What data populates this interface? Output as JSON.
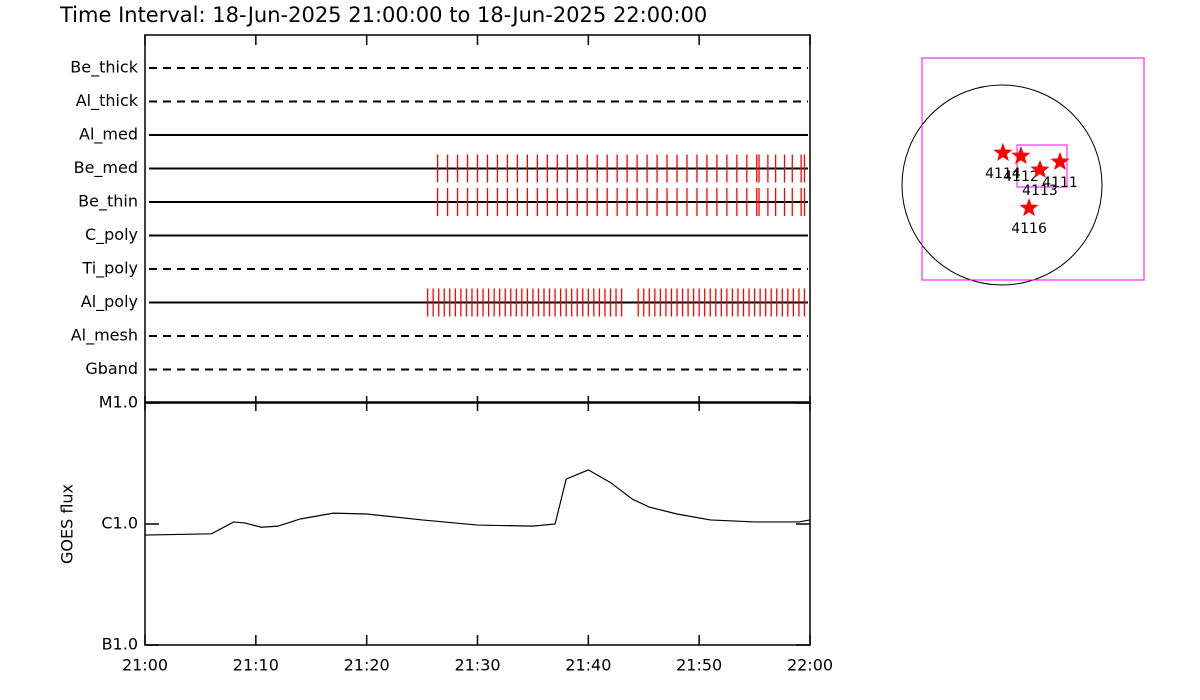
{
  "chart_data": [
    {
      "type": "timeline",
      "title": "Time Interval: 18-Jun-2025 21:00:00 to 18-Jun-2025 22:00:00",
      "xlim": [
        0,
        60
      ],
      "color": "#ff0000",
      "rows": [
        {
          "name": "Be_thick",
          "line_style": "dashed",
          "events": []
        },
        {
          "name": "Al_thick",
          "line_style": "dashed",
          "events": []
        },
        {
          "name": "Al_med",
          "line_style": "solid",
          "events": []
        },
        {
          "name": "Be_med",
          "line_style": "solid",
          "events": [
            26.4,
            27.3,
            28.2,
            29.1,
            30.0,
            30.9,
            31.8,
            32.7,
            33.6,
            34.5,
            35.4,
            36.3,
            37.2,
            38.1,
            39.0,
            39.9,
            40.8,
            41.7,
            42.6,
            43.5,
            44.4,
            45.3,
            46.2,
            47.1,
            48.0,
            48.9,
            49.8,
            50.7,
            51.6,
            52.5,
            53.4,
            54.3,
            55.2,
            55.4,
            56.2,
            56.9,
            57.7,
            58.4,
            59.2,
            59.5
          ]
        },
        {
          "name": "Be_thin",
          "line_style": "solid",
          "events": [
            26.4,
            27.3,
            28.2,
            29.1,
            30.0,
            30.9,
            31.8,
            32.7,
            33.6,
            34.5,
            35.4,
            36.3,
            37.2,
            38.1,
            39.0,
            39.9,
            40.8,
            41.7,
            42.6,
            43.5,
            44.4,
            45.3,
            46.2,
            47.1,
            48.0,
            48.9,
            49.8,
            50.7,
            51.6,
            52.5,
            53.4,
            54.3,
            55.2,
            55.4,
            56.2,
            56.9,
            57.7,
            58.4,
            59.2,
            59.5
          ]
        },
        {
          "name": "C_poly",
          "line_style": "solid",
          "events": []
        },
        {
          "name": "Ti_poly",
          "line_style": "dashed",
          "events": []
        },
        {
          "name": "Al_poly",
          "line_style": "solid",
          "events": [
            25.5,
            26.0,
            26.5,
            27.0,
            27.5,
            28.0,
            28.5,
            29.0,
            29.5,
            30.0,
            30.5,
            31.0,
            31.5,
            32.0,
            32.5,
            33.0,
            33.5,
            34.0,
            34.5,
            35.0,
            35.5,
            36.0,
            36.5,
            37.0,
            37.5,
            38.0,
            38.5,
            39.0,
            39.5,
            40.0,
            40.5,
            41.0,
            41.5,
            42.0,
            42.5,
            43.0,
            44.5,
            45.0,
            45.5,
            46.0,
            46.5,
            47.0,
            47.5,
            48.0,
            48.5,
            49.0,
            49.5,
            50.0,
            50.5,
            51.0,
            51.5,
            52.0,
            52.5,
            53.0,
            53.5,
            54.0,
            54.5,
            55.0,
            55.5,
            56.0,
            56.5,
            57.0,
            57.5,
            58.0,
            58.5,
            59.0,
            59.5
          ]
        },
        {
          "name": "Al_mesh",
          "line_style": "dashed",
          "events": []
        },
        {
          "name": "Gband",
          "line_style": "dashed",
          "events": []
        }
      ]
    },
    {
      "type": "line",
      "ylabel": "GOES flux",
      "log_scale": true,
      "color": "#000000",
      "xlim": [
        0,
        60
      ],
      "xticks": [
        {
          "value": 0,
          "label": "21:00"
        },
        {
          "value": 10,
          "label": "21:10"
        },
        {
          "value": 20,
          "label": "21:20"
        },
        {
          "value": 30,
          "label": "21:30"
        },
        {
          "value": 40,
          "label": "21:40"
        },
        {
          "value": 50,
          "label": "21:50"
        },
        {
          "value": 60,
          "label": "22:00"
        }
      ],
      "ylim": [
        1e-07,
        1e-05
      ],
      "yticks": [
        {
          "value": 1e-07,
          "label": "B1.0"
        },
        {
          "value": 1e-06,
          "label": "C1.0"
        },
        {
          "value": 1e-05,
          "label": "M1.0"
        }
      ],
      "x": [
        0,
        6,
        8,
        9,
        10.5,
        12,
        14,
        17,
        20,
        25,
        30,
        35,
        37,
        38,
        40,
        42,
        44,
        45.5,
        48,
        51,
        55,
        59,
        60
      ],
      "values": [
        8.1e-07,
        8.3e-07,
        1.04e-06,
        1.02e-06,
        9.4e-07,
        9.6e-07,
        1.1e-06,
        1.23e-06,
        1.21e-06,
        1.08e-06,
        9.8e-07,
        9.6e-07,
        1e-06,
        2.35e-06,
        2.8e-06,
        2.2e-06,
        1.6e-06,
        1.38e-06,
        1.21e-06,
        1.08e-06,
        1.04e-06,
        1.04e-06,
        1.08e-06
      ]
    },
    {
      "type": "scatter",
      "color": "#ff0000",
      "frame_color": "#ff00ff",
      "xlim": [
        -760,
        1349
      ],
      "ylim": [
        -903,
        1206
      ],
      "x": [
        9,
        180,
        361,
        551,
        257
      ],
      "values": [
        304,
        275,
        143,
        219,
        -219
      ],
      "labels": [
        "4114",
        "4112",
        "4113",
        "4111",
        "4116"
      ]
    }
  ]
}
